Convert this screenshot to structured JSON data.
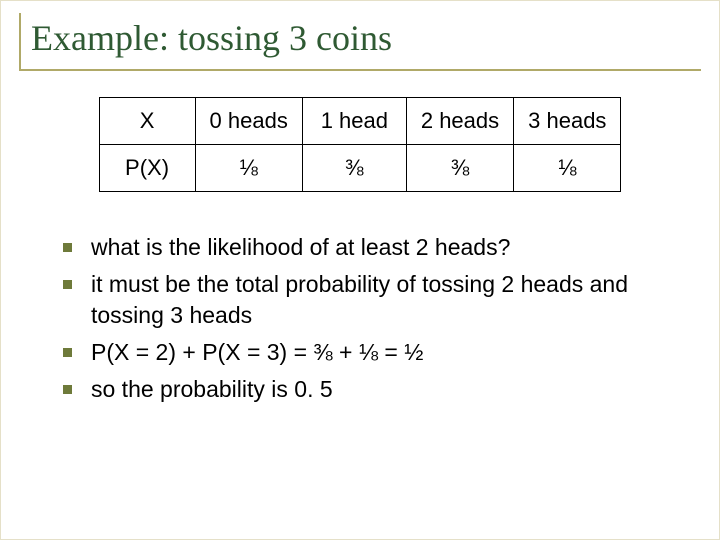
{
  "title": "Example: tossing 3 coins",
  "table": {
    "row1": {
      "label": "X",
      "c1": "0 heads",
      "c2": "1 head",
      "c3": "2 heads",
      "c4": "3 heads"
    },
    "row2": {
      "label": "P(X)",
      "c1": "⅛",
      "c2": "⅜",
      "c3": "⅜",
      "c4": "⅛"
    }
  },
  "bullets": {
    "b1": "what is the likelihood of at least 2 heads?",
    "b2": "it must be the total probability of tossing 2 heads and tossing 3 heads",
    "b3": "P(X = 2) + P(X = 3) = ⅜ + ⅛ = ½",
    "b4": "so the probability is 0. 5"
  },
  "colors": {
    "title_rule": "#b0a968",
    "title_text": "#2f5a33",
    "bullet_marker": "#6e7a3a",
    "table_border": "#000000",
    "background": "#ffffff",
    "text": "#000000"
  },
  "typography": {
    "title_family": "Times New Roman",
    "title_size_pt": 27,
    "body_family": "Arial",
    "body_size_pt": 17,
    "table_size_pt": 17
  }
}
